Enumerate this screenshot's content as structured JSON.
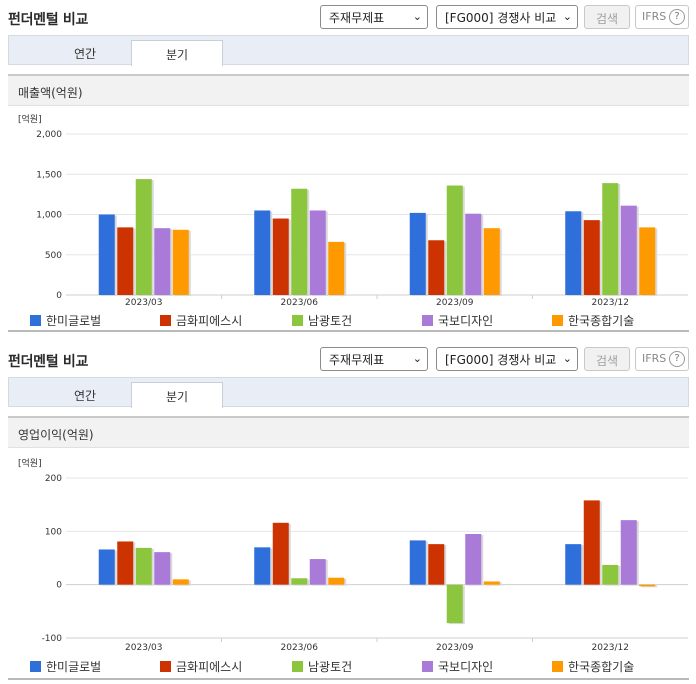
{
  "panels": [
    {
      "title": "펀더멘털 비교",
      "select_statement": "주재무제표",
      "select_compare": "[FG000] 경쟁사 비교",
      "search_label": "검색",
      "ifrs_label": "IFRS",
      "help_glyph": "?",
      "tabs": [
        "연간",
        "분기"
      ],
      "active_tab": "분기",
      "chart_title": "매출액(억원)",
      "chart_data": {
        "type": "bar",
        "unit_label": "[억원]",
        "categories": [
          "2023/03",
          "2023/06",
          "2023/09",
          "2023/12"
        ],
        "ylim": [
          0,
          2000
        ],
        "yticks": [
          0,
          500,
          1000,
          1500,
          2000
        ],
        "ytick_labels": [
          "0",
          "500",
          "1,000",
          "1,500",
          "2,000"
        ],
        "grid": true,
        "legend_position": "bottom",
        "series": [
          {
            "name": "한미글로벌",
            "color": "#2f6fdb",
            "values": [
              1000,
              1050,
              1020,
              1040
            ]
          },
          {
            "name": "금화피에스시",
            "color": "#cc3300",
            "values": [
              840,
              950,
              680,
              930
            ]
          },
          {
            "name": "남광토건",
            "color": "#8cc63f",
            "values": [
              1440,
              1320,
              1360,
              1390
            ]
          },
          {
            "name": "국보디자인",
            "color": "#a97ad8",
            "values": [
              830,
              1050,
              1010,
              1110
            ]
          },
          {
            "name": "한국종합기술",
            "color": "#ff9900",
            "values": [
              810,
              660,
              830,
              840
            ]
          }
        ]
      }
    },
    {
      "title": "펀더멘털 비교",
      "select_statement": "주재무제표",
      "select_compare": "[FG000] 경쟁사 비교",
      "search_label": "검색",
      "ifrs_label": "IFRS",
      "help_glyph": "?",
      "tabs": [
        "연간",
        "분기"
      ],
      "active_tab": "분기",
      "chart_title": "영업이익(억원)",
      "chart_data": {
        "type": "bar",
        "unit_label": "[억원]",
        "categories": [
          "2023/03",
          "2023/06",
          "2023/09",
          "2023/12"
        ],
        "ylim": [
          -100,
          200
        ],
        "yticks": [
          -100,
          0,
          100,
          200
        ],
        "ytick_labels": [
          "-100",
          "0",
          "100",
          "200"
        ],
        "grid": true,
        "legend_position": "bottom",
        "series": [
          {
            "name": "한미글로벌",
            "color": "#2f6fdb",
            "values": [
              66,
              70,
              83,
              76
            ]
          },
          {
            "name": "금화피에스시",
            "color": "#cc3300",
            "values": [
              81,
              116,
              76,
              158
            ]
          },
          {
            "name": "남광토건",
            "color": "#8cc63f",
            "values": [
              69,
              12,
              -72,
              37
            ]
          },
          {
            "name": "국보디자인",
            "color": "#a97ad8",
            "values": [
              61,
              48,
              95,
              121
            ]
          },
          {
            "name": "한국종합기술",
            "color": "#ff9900",
            "values": [
              10,
              13,
              6,
              -3
            ]
          }
        ]
      }
    }
  ]
}
